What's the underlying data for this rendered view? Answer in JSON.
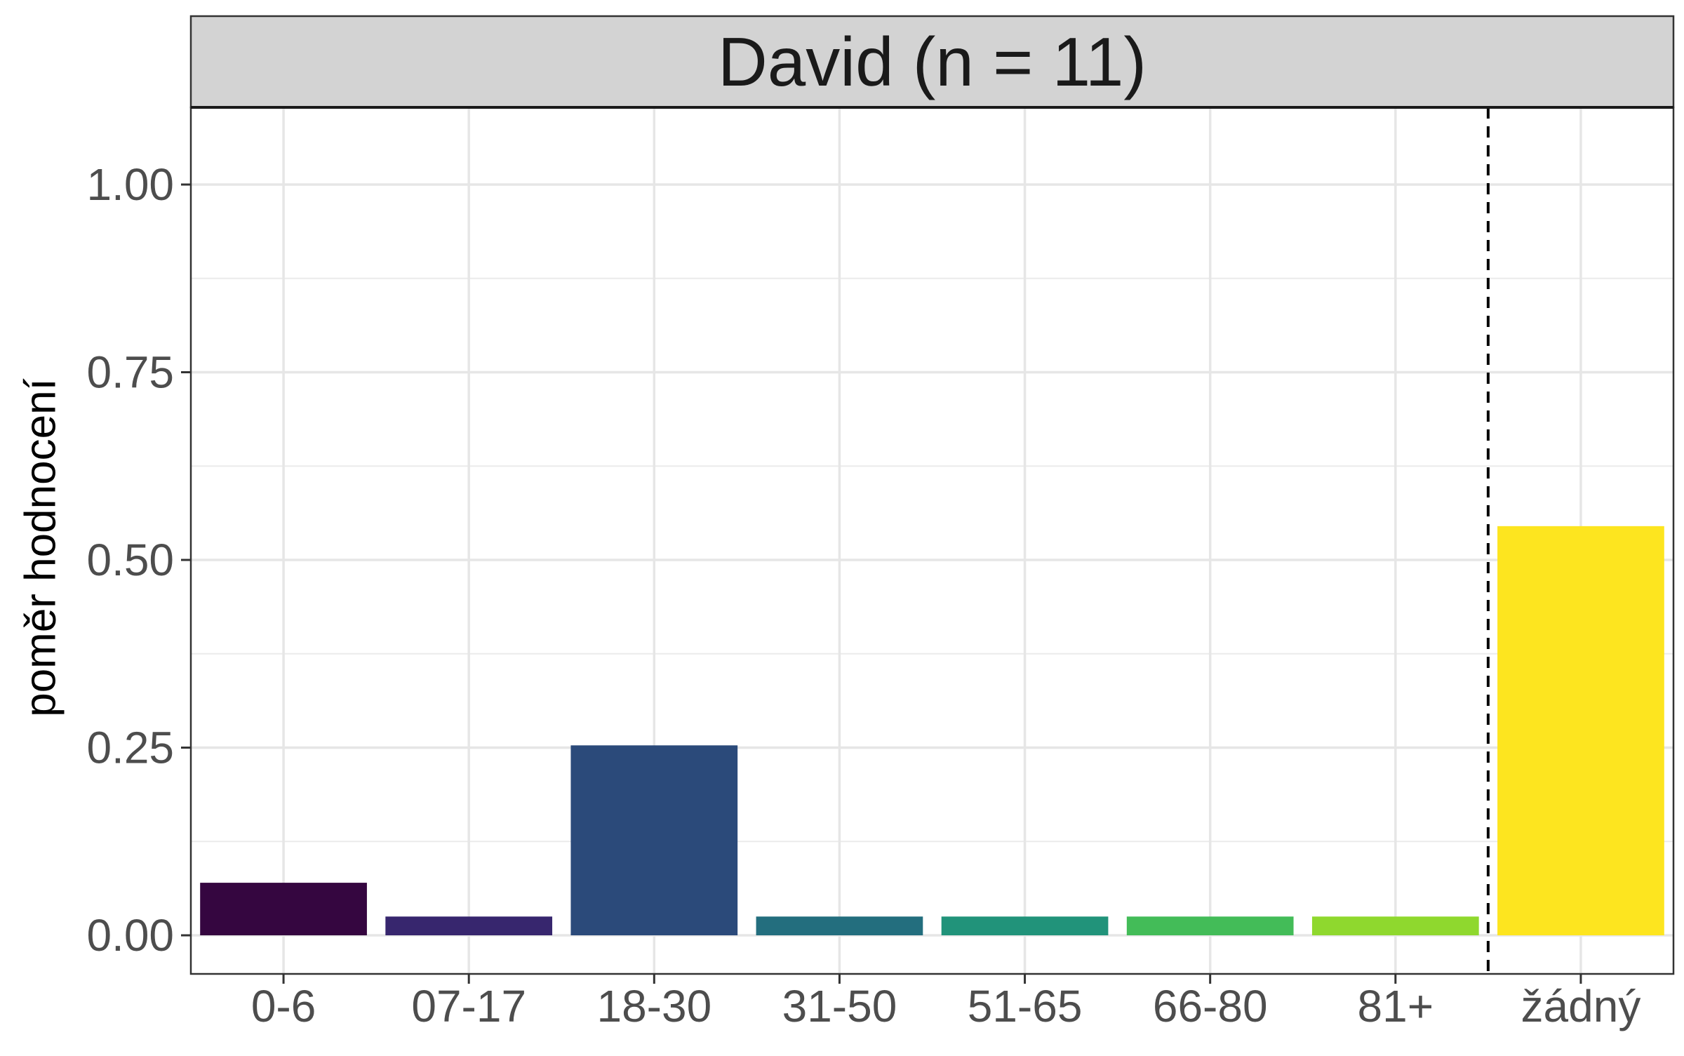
{
  "chart_data": {
    "type": "bar",
    "facet_title": "David (n = 11)",
    "title": "",
    "xlabel": "",
    "ylabel": "poměr hodnocení",
    "categories": [
      "0-6",
      "07-17",
      "18-30",
      "31-50",
      "51-65",
      "66-80",
      "81+",
      "žádný"
    ],
    "values": [
      0.07,
      0.025,
      0.253,
      0.025,
      0.025,
      0.025,
      0.025,
      0.545
    ],
    "colors": [
      "#350640",
      "#37266E",
      "#2B4A7A",
      "#236E7E",
      "#21937A",
      "#43BC58",
      "#8FD82E",
      "#FDE51F"
    ],
    "ylim": [
      0,
      1.1
    ],
    "yticks": [
      0,
      0.25,
      0.5,
      0.75,
      1.0
    ],
    "ytick_labels": [
      "0.00",
      "0.25",
      "0.50",
      "0.75",
      "1.00"
    ],
    "grid": true,
    "legend": "none",
    "reference_line": {
      "style": "dashed",
      "between": [
        "81+",
        "žádný"
      ]
    },
    "strip_color": "#d3d3d3"
  }
}
